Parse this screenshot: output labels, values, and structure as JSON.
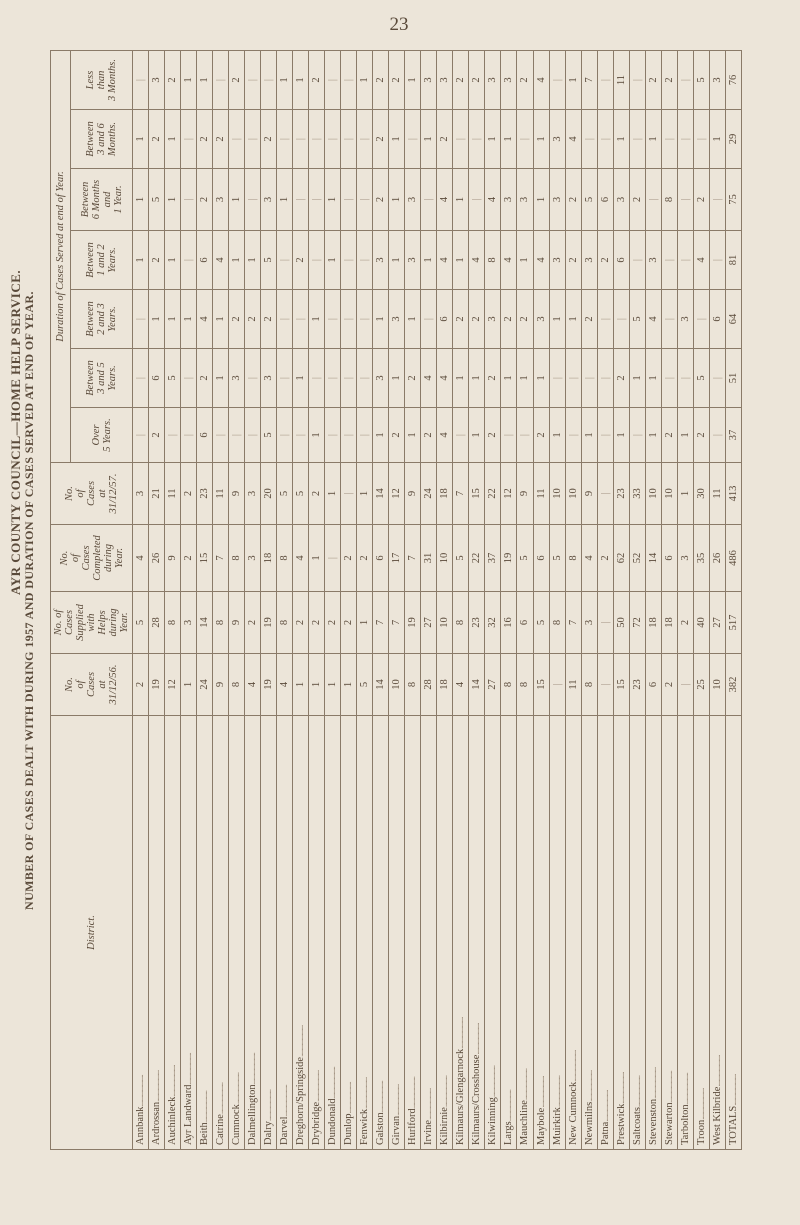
{
  "page_number": "23",
  "side_title_main": "AYR COUNTY COUNCIL—HOME HELP SERVICE.",
  "side_title_sub": "NUMBER OF CASES DEALT WITH DURING 1957 AND DURATION OF CASES SERVED AT END OF YEAR.",
  "headers": {
    "district": "District.",
    "col_a": "No.\nof\nCases\nat\n31/12/56.",
    "col_b": "No. of\nCases\nSupplied\nwith\nHelps\nduring\nYear.",
    "col_c": "No.\nof\nCases\nCompleted\nduring\nYear.",
    "col_d": "No.\nof\nCases\nat\n31/12/57.",
    "duration_group": "Duration of Cases Served at end of Year.",
    "dur1": "Over\n5 Years.",
    "dur2": "Between\n3 and 5\nYears.",
    "dur3": "Between\n2 and 3\nYears.",
    "dur4": "Between\n1 and 2\nYears.",
    "dur5": "Between\n6 Months\nand\n1 Year.",
    "dur6": "Between\n3 and 6\nMonths.",
    "dur7": "Less\nthan\n3 Months."
  },
  "rows": [
    {
      "d": "Annbank",
      "v": [
        "2",
        "5",
        "4",
        "3",
        "|",
        "|",
        "|",
        "1",
        "1",
        "1",
        "|"
      ]
    },
    {
      "d": "Ardrossan",
      "v": [
        "19",
        "28",
        "26",
        "21",
        "2",
        "6",
        "1",
        "2",
        "5",
        "2",
        "3"
      ]
    },
    {
      "d": "Auchinleck",
      "v": [
        "12",
        "8",
        "9",
        "11",
        "|",
        "5",
        "1",
        "1",
        "1",
        "1",
        "2"
      ]
    },
    {
      "d": "Ayr Landward",
      "v": [
        "1",
        "3",
        "2",
        "2",
        "|",
        "|",
        "1",
        "|",
        "|",
        "|",
        "1"
      ]
    },
    {
      "d": "Beith",
      "v": [
        "24",
        "14",
        "15",
        "23",
        "6",
        "2",
        "4",
        "6",
        "2",
        "2",
        "1"
      ]
    },
    {
      "d": "Catrine",
      "v": [
        "9",
        "8",
        "7",
        "11",
        "|",
        "1",
        "1",
        "4",
        "3",
        "2",
        "|"
      ]
    },
    {
      "d": "Cumnock",
      "v": [
        "8",
        "9",
        "8",
        "9",
        "|",
        "3",
        "2",
        "1",
        "1",
        "|",
        "2"
      ]
    },
    {
      "d": "Dalmellington",
      "v": [
        "4",
        "2",
        "3",
        "3",
        "|",
        "|",
        "2",
        "1",
        "|",
        "|",
        "|"
      ]
    },
    {
      "d": "Dalry",
      "v": [
        "19",
        "19",
        "18",
        "20",
        "5",
        "3",
        "2",
        "5",
        "3",
        "2",
        "|"
      ]
    },
    {
      "d": "Darvel",
      "v": [
        "4",
        "8",
        "8",
        "5",
        "|",
        "|",
        "|",
        "|",
        "1",
        "|",
        "1"
      ]
    },
    {
      "d": "Dreghorn/Springside",
      "v": [
        "1",
        "2",
        "4",
        "5",
        "|",
        "1",
        "|",
        "2",
        "|",
        "|",
        "1"
      ]
    },
    {
      "d": "Drybridge",
      "v": [
        "1",
        "2",
        "1",
        "2",
        "1",
        "|",
        "1",
        "|",
        "|",
        "|",
        "2"
      ]
    },
    {
      "d": "Dundonald",
      "v": [
        "1",
        "2",
        "|",
        "1",
        "|",
        "|",
        "|",
        "1",
        "1",
        "|",
        "|"
      ]
    },
    {
      "d": "Dunlop",
      "v": [
        "1",
        "2",
        "2",
        "|",
        "|",
        "|",
        "|",
        "|",
        "|",
        "|",
        "|"
      ]
    },
    {
      "d": "Fenwick",
      "v": [
        "5",
        "1",
        "2",
        "1",
        "|",
        "|",
        "|",
        "|",
        "|",
        "|",
        "1"
      ]
    },
    {
      "d": "Galston",
      "v": [
        "14",
        "7",
        "6",
        "14",
        "1",
        "3",
        "1",
        "3",
        "2",
        "2",
        "2"
      ]
    },
    {
      "d": "Girvan",
      "v": [
        "10",
        "7",
        "17",
        "12",
        "2",
        "1",
        "3",
        "1",
        "1",
        "1",
        "2"
      ]
    },
    {
      "d": "Hurlford",
      "v": [
        "8",
        "19",
        "7",
        "9",
        "1",
        "2",
        "1",
        "3",
        "3",
        "|",
        "1"
      ]
    },
    {
      "d": "Irvine",
      "v": [
        "28",
        "27",
        "31",
        "24",
        "2",
        "4",
        "|",
        "1",
        "|",
        "1",
        "3"
      ]
    },
    {
      "d": "Kilbirnie",
      "v": [
        "18",
        "10",
        "10",
        "18",
        "4",
        "4",
        "6",
        "4",
        "4",
        "2",
        "3"
      ]
    },
    {
      "d": "Kilmaurs/Glengarnock",
      "v": [
        "4",
        "8",
        "5",
        "7",
        "|",
        "1",
        "2",
        "1",
        "1",
        "|",
        "2"
      ]
    },
    {
      "d": "Kilmaurs/Crosshouse",
      "v": [
        "14",
        "23",
        "22",
        "15",
        "1",
        "1",
        "2",
        "4",
        "|",
        "|",
        "2"
      ]
    },
    {
      "d": "Kilwinning",
      "v": [
        "27",
        "32",
        "37",
        "22",
        "2",
        "2",
        "3",
        "8",
        "4",
        "1",
        "3"
      ]
    },
    {
      "d": "Largs",
      "v": [
        "8",
        "16",
        "19",
        "12",
        "|",
        "1",
        "2",
        "4",
        "3",
        "1",
        "3"
      ]
    },
    {
      "d": "Mauchline",
      "v": [
        "8",
        "6",
        "5",
        "9",
        "|",
        "1",
        "2",
        "1",
        "3",
        "|",
        "2"
      ]
    },
    {
      "d": "Maybole",
      "v": [
        "15",
        "5",
        "6",
        "11",
        "2",
        "1",
        "3",
        "4",
        "1",
        "1",
        "4"
      ]
    },
    {
      "d": "Muirkirk",
      "v": [
        "|",
        "8",
        "5",
        "10",
        "1",
        "|",
        "1",
        "3",
        "3",
        "3",
        "|"
      ]
    },
    {
      "d": "New Cumnock",
      "v": [
        "11",
        "7",
        "8",
        "10",
        "|",
        "|",
        "1",
        "2",
        "2",
        "4",
        "1"
      ]
    },
    {
      "d": "Newmilns",
      "v": [
        "8",
        "3",
        "4",
        "9",
        "1",
        "|",
        "2",
        "3",
        "5",
        "|",
        "7"
      ]
    },
    {
      "d": "Patna",
      "v": [
        "|",
        "|",
        "2",
        "|",
        "|",
        "|",
        "|",
        "2",
        "6",
        "|",
        "|"
      ]
    },
    {
      "d": "Prestwick",
      "v": [
        "15",
        "50",
        "62",
        "23",
        "1",
        "2",
        "|",
        "6",
        "3",
        "1",
        "11"
      ]
    },
    {
      "d": "Saltcoats",
      "v": [
        "23",
        "72",
        "52",
        "33",
        "|",
        "1",
        "5",
        "|",
        "2",
        "|",
        "|"
      ]
    },
    {
      "d": "Stevenston",
      "v": [
        "6",
        "18",
        "14",
        "10",
        "1",
        "1",
        "4",
        "3",
        "|",
        "1",
        "2"
      ]
    },
    {
      "d": "Stewarton",
      "v": [
        "2",
        "18",
        "6",
        "10",
        "2",
        "|",
        "|",
        "|",
        "8",
        "|",
        "2"
      ]
    },
    {
      "d": "Tarbolton",
      "v": [
        "|",
        "2",
        "3",
        "1",
        "1",
        "|",
        "3",
        "|",
        "|",
        "|",
        "|"
      ]
    },
    {
      "d": "Troon",
      "v": [
        "25",
        "40",
        "35",
        "30",
        "2",
        "5",
        "|",
        "4",
        "2",
        "|",
        "5"
      ]
    },
    {
      "d": "West Kilbride",
      "v": [
        "10",
        "27",
        "26",
        "11",
        "|",
        "|",
        "6",
        "|",
        "|",
        "1",
        "3"
      ]
    }
  ],
  "totals_label": "TOTALS",
  "totals": [
    "382",
    "517",
    "486",
    "413",
    "37",
    "51",
    "64",
    "81",
    "75",
    "29",
    "76"
  ],
  "dash": "|"
}
